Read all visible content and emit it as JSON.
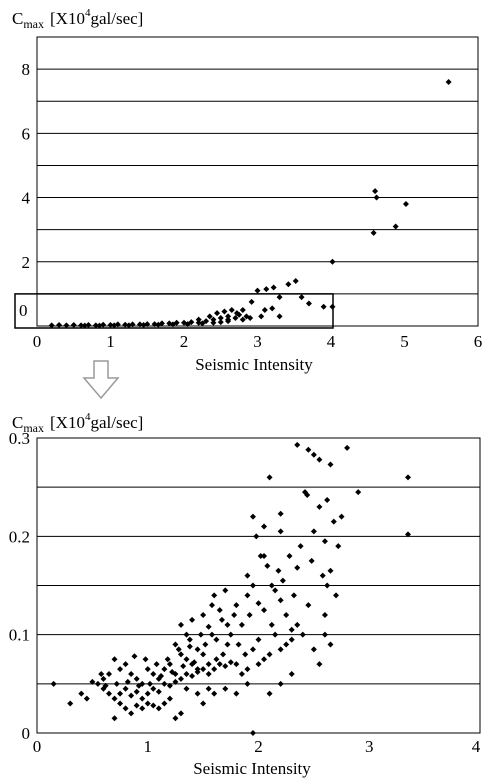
{
  "chart_data": [
    {
      "type": "scatter",
      "ylabel": {
        "main": "C",
        "sub": "max",
        "unit_pre": "[X10",
        "unit_sup": "4",
        "unit_post": "gal/sec]"
      },
      "xlabel": "Seismic Intensity",
      "xlim": [
        0,
        6
      ],
      "ylim": [
        0,
        9
      ],
      "x_ticks": [
        "0",
        "1",
        "2",
        "3",
        "4",
        "5",
        "6"
      ],
      "y_ticks": [
        {
          "value": 2,
          "label": "2"
        },
        {
          "value": 4,
          "label": "4"
        },
        {
          "value": 6,
          "label": "6"
        },
        {
          "value": 8,
          "label": "8"
        }
      ],
      "label_zero": "0",
      "grid_y": [
        1,
        2,
        3,
        4,
        5,
        6,
        7,
        8,
        9
      ],
      "colors": {
        "marker": "#000000",
        "grid": "#000000",
        "arrow": "#9a9a9a"
      },
      "highlight_box": {
        "x0": 0,
        "x1": 4,
        "y0": 0,
        "y1": 0.3
      },
      "points": [
        [
          5.6,
          7.6
        ],
        [
          4.6,
          4.2
        ],
        [
          4.62,
          4.0
        ],
        [
          5.02,
          3.8
        ],
        [
          4.88,
          3.1
        ],
        [
          4.58,
          2.9
        ],
        [
          4.02,
          2.0
        ],
        [
          3.52,
          1.4
        ],
        [
          3.42,
          1.3
        ],
        [
          3.22,
          1.2
        ],
        [
          3.12,
          1.15
        ],
        [
          3.0,
          1.1
        ],
        [
          3.6,
          0.9
        ],
        [
          3.3,
          0.9
        ],
        [
          3.7,
          0.7
        ],
        [
          3.9,
          0.6
        ],
        [
          4.02,
          0.6
        ],
        [
          3.2,
          0.55
        ],
        [
          2.92,
          0.75
        ],
        [
          2.8,
          0.5
        ],
        [
          3.1,
          0.5
        ],
        [
          2.72,
          0.4
        ],
        [
          3.3,
          0.3
        ],
        [
          2.6,
          0.3
        ],
        [
          2.5,
          0.25
        ],
        [
          2.9,
          0.25
        ],
        [
          2.8,
          0.2
        ],
        [
          2.6,
          0.15
        ],
        [
          2.4,
          0.2
        ],
        [
          2.3,
          0.15
        ],
        [
          2.2,
          0.1
        ],
        [
          2.0,
          0.1
        ],
        [
          1.8,
          0.08
        ],
        [
          1.6,
          0.06
        ],
        [
          1.4,
          0.05
        ],
        [
          1.2,
          0.04
        ],
        [
          1.0,
          0.03
        ],
        [
          0.8,
          0.02
        ],
        [
          0.6,
          0.02
        ],
        [
          0.4,
          0.02
        ],
        [
          0.2,
          0.02
        ],
        [
          0.3,
          0.03
        ],
        [
          0.5,
          0.03
        ],
        [
          0.7,
          0.03
        ],
        [
          0.9,
          0.04
        ],
        [
          1.1,
          0.05
        ],
        [
          1.3,
          0.05
        ],
        [
          1.5,
          0.06
        ],
        [
          1.7,
          0.08
        ],
        [
          1.9,
          0.1
        ],
        [
          2.1,
          0.12
        ],
        [
          2.2,
          0.2
        ],
        [
          2.35,
          0.3
        ],
        [
          2.45,
          0.4
        ],
        [
          2.55,
          0.45
        ],
        [
          2.65,
          0.5
        ],
        [
          2.75,
          0.35
        ],
        [
          2.85,
          0.3
        ],
        [
          3.05,
          0.3
        ],
        [
          0.65,
          0.01
        ],
        [
          0.85,
          0.01
        ],
        [
          1.05,
          0.02
        ],
        [
          1.25,
          0.02
        ],
        [
          1.45,
          0.03
        ],
        [
          1.65,
          0.04
        ],
        [
          1.85,
          0.05
        ],
        [
          2.05,
          0.06
        ],
        [
          2.25,
          0.08
        ],
        [
          2.4,
          0.1
        ],
        [
          2.5,
          0.12
        ],
        [
          2.6,
          0.2
        ],
        [
          2.7,
          0.25
        ]
      ]
    },
    {
      "type": "scatter",
      "ylabel": {
        "main": "C",
        "sub": "max",
        "unit_pre": "[X10",
        "unit_sup": "4",
        "unit_post": "gal/sec]"
      },
      "xlabel": "Seismic Intensity",
      "xlim": [
        0,
        4
      ],
      "ylim": [
        0,
        0.3
      ],
      "x_ticks": [
        "0",
        "1",
        "2",
        "3",
        "4"
      ],
      "y_ticks": [
        {
          "value": 0,
          "label": "0"
        },
        {
          "value": 0.1,
          "label": "0.1"
        },
        {
          "value": 0.2,
          "label": "0.2"
        },
        {
          "value": 0.3,
          "label": "0.3"
        }
      ],
      "grid_y": [
        0.05,
        0.1,
        0.15,
        0.2,
        0.25
      ],
      "colors": {
        "marker": "#000000",
        "grid": "#000000"
      },
      "points": [
        [
          2.35,
          0.293
        ],
        [
          2.45,
          0.288
        ],
        [
          2.5,
          0.283
        ],
        [
          2.55,
          0.278
        ],
        [
          2.65,
          0.273
        ],
        [
          2.8,
          0.29
        ],
        [
          3.35,
          0.26
        ],
        [
          2.1,
          0.26
        ],
        [
          2.42,
          0.245
        ],
        [
          2.44,
          0.242
        ],
        [
          2.9,
          0.245
        ],
        [
          2.62,
          0.237
        ],
        [
          2.55,
          0.23
        ],
        [
          2.2,
          0.223
        ],
        [
          2.05,
          0.21
        ],
        [
          2.68,
          0.215
        ],
        [
          2.75,
          0.22
        ],
        [
          1.95,
          0.22
        ],
        [
          2.2,
          0.205
        ],
        [
          2.5,
          0.205
        ],
        [
          3.35,
          0.202
        ],
        [
          2.6,
          0.195
        ],
        [
          2.72,
          0.19
        ],
        [
          2.05,
          0.18
        ],
        [
          2.08,
          0.17
        ],
        [
          2.35,
          0.168
        ],
        [
          2.65,
          0.165
        ],
        [
          2.62,
          0.15
        ],
        [
          2.22,
          0.155
        ],
        [
          1.9,
          0.16
        ],
        [
          1.95,
          0.15
        ],
        [
          1.9,
          0.14
        ],
        [
          2.15,
          0.145
        ],
        [
          2.2,
          0.135
        ],
        [
          1.7,
          0.145
        ],
        [
          1.6,
          0.14
        ],
        [
          1.65,
          0.125
        ],
        [
          1.67,
          0.115
        ],
        [
          1.5,
          0.12
        ],
        [
          1.55,
          0.108
        ],
        [
          1.58,
          0.1
        ],
        [
          1.4,
          0.115
        ],
        [
          1.3,
          0.11
        ],
        [
          1.35,
          0.1
        ],
        [
          1.25,
          0.09
        ],
        [
          1.38,
          0.088
        ],
        [
          1.45,
          0.085
        ],
        [
          1.8,
          0.13
        ],
        [
          1.85,
          0.11
        ],
        [
          1.92,
          0.12
        ],
        [
          2.05,
          0.125
        ],
        [
          2.12,
          0.11
        ],
        [
          2.15,
          0.1
        ],
        [
          2.25,
          0.12
        ],
        [
          2.3,
          0.105
        ],
        [
          2.35,
          0.11
        ],
        [
          2.0,
          0.095
        ],
        [
          1.95,
          0.085
        ],
        [
          1.88,
          0.08
        ],
        [
          1.82,
          0.09
        ],
        [
          1.75,
          0.1
        ],
        [
          1.72,
          0.09
        ],
        [
          1.68,
          0.08
        ],
        [
          1.62,
          0.075
        ],
        [
          1.55,
          0.07
        ],
        [
          1.5,
          0.08
        ],
        [
          1.45,
          0.065
        ],
        [
          1.4,
          0.07
        ],
        [
          1.35,
          0.075
        ],
        [
          1.3,
          0.08
        ],
        [
          1.25,
          0.06
        ],
        [
          1.2,
          0.07
        ],
        [
          1.15,
          0.065
        ],
        [
          1.1,
          0.055
        ],
        [
          1.05,
          0.06
        ],
        [
          1.0,
          0.065
        ],
        [
          0.95,
          0.05
        ],
        [
          0.9,
          0.055
        ],
        [
          0.85,
          0.06
        ],
        [
          0.8,
          0.07
        ],
        [
          0.75,
          0.065
        ],
        [
          0.7,
          0.075
        ],
        [
          0.65,
          0.06
        ],
        [
          0.6,
          0.055
        ],
        [
          0.55,
          0.05
        ],
        [
          0.5,
          0.052
        ],
        [
          0.45,
          0.035
        ],
        [
          0.4,
          0.04
        ],
        [
          0.3,
          0.03
        ],
        [
          0.15,
          0.05
        ],
        [
          0.6,
          0.045
        ],
        [
          0.65,
          0.04
        ],
        [
          0.7,
          0.035
        ],
        [
          0.75,
          0.04
        ],
        [
          0.8,
          0.045
        ],
        [
          0.85,
          0.038
        ],
        [
          0.9,
          0.042
        ],
        [
          0.95,
          0.035
        ],
        [
          1.0,
          0.04
        ],
        [
          1.05,
          0.045
        ],
        [
          1.1,
          0.042
        ],
        [
          1.15,
          0.05
        ],
        [
          1.2,
          0.048
        ],
        [
          1.25,
          0.052
        ],
        [
          1.3,
          0.055
        ],
        [
          1.35,
          0.06
        ],
        [
          1.4,
          0.058
        ],
        [
          1.45,
          0.062
        ],
        [
          1.5,
          0.065
        ],
        [
          1.55,
          0.06
        ],
        [
          1.6,
          0.065
        ],
        [
          1.65,
          0.07
        ],
        [
          1.7,
          0.068
        ],
        [
          1.75,
          0.072
        ],
        [
          1.8,
          0.07
        ],
        [
          1.85,
          0.06
        ],
        [
          1.9,
          0.065
        ],
        [
          2.0,
          0.07
        ],
        [
          2.05,
          0.075
        ],
        [
          2.1,
          0.08
        ],
        [
          2.2,
          0.085
        ],
        [
          2.25,
          0.09
        ],
        [
          2.3,
          0.095
        ],
        [
          2.4,
          0.1
        ],
        [
          2.5,
          0.085
        ],
        [
          2.55,
          0.07
        ],
        [
          2.6,
          0.1
        ],
        [
          2.65,
          0.09
        ],
        [
          1.2,
          0.035
        ],
        [
          1.1,
          0.025
        ],
        [
          1.0,
          0.03
        ],
        [
          0.9,
          0.028
        ],
        [
          0.8,
          0.025
        ],
        [
          0.7,
          0.015
        ],
        [
          0.75,
          0.03
        ],
        [
          1.25,
          0.015
        ],
        [
          1.3,
          0.02
        ],
        [
          1.5,
          0.03
        ],
        [
          1.6,
          0.04
        ],
        [
          1.7,
          0.045
        ],
        [
          1.8,
          0.04
        ],
        [
          1.9,
          0.05
        ],
        [
          2.1,
          0.04
        ],
        [
          2.2,
          0.05
        ],
        [
          2.3,
          0.06
        ],
        [
          1.95,
          0.0
        ],
        [
          1.55,
          0.045
        ],
        [
          1.45,
          0.04
        ],
        [
          1.35,
          0.045
        ],
        [
          1.15,
          0.03
        ],
        [
          1.05,
          0.028
        ],
        [
          0.95,
          0.025
        ],
        [
          0.85,
          0.02
        ],
        [
          0.62,
          0.048
        ],
        [
          0.58,
          0.06
        ],
        [
          0.72,
          0.05
        ],
        [
          0.82,
          0.052
        ],
        [
          0.92,
          0.048
        ],
        [
          1.02,
          0.05
        ],
        [
          1.12,
          0.058
        ],
        [
          1.22,
          0.062
        ],
        [
          1.32,
          0.068
        ],
        [
          1.42,
          0.072
        ],
        [
          1.52,
          0.09
        ],
        [
          1.62,
          0.095
        ],
        [
          1.72,
          0.11
        ],
        [
          1.78,
          0.12
        ],
        [
          1.58,
          0.13
        ],
        [
          1.48,
          0.1
        ],
        [
          1.38,
          0.095
        ],
        [
          1.28,
          0.085
        ],
        [
          1.18,
          0.075
        ],
        [
          1.08,
          0.07
        ],
        [
          0.98,
          0.075
        ],
        [
          0.88,
          0.078
        ],
        [
          2.0,
          0.132
        ],
        [
          2.18,
          0.165
        ],
        [
          2.28,
          0.18
        ],
        [
          2.38,
          0.19
        ],
        [
          2.48,
          0.175
        ],
        [
          2.58,
          0.16
        ],
        [
          2.7,
          0.14
        ],
        [
          2.6,
          0.12
        ],
        [
          2.45,
          0.13
        ],
        [
          2.32,
          0.14
        ],
        [
          2.12,
          0.15
        ],
        [
          2.02,
          0.18
        ],
        [
          1.98,
          0.2
        ]
      ]
    }
  ]
}
